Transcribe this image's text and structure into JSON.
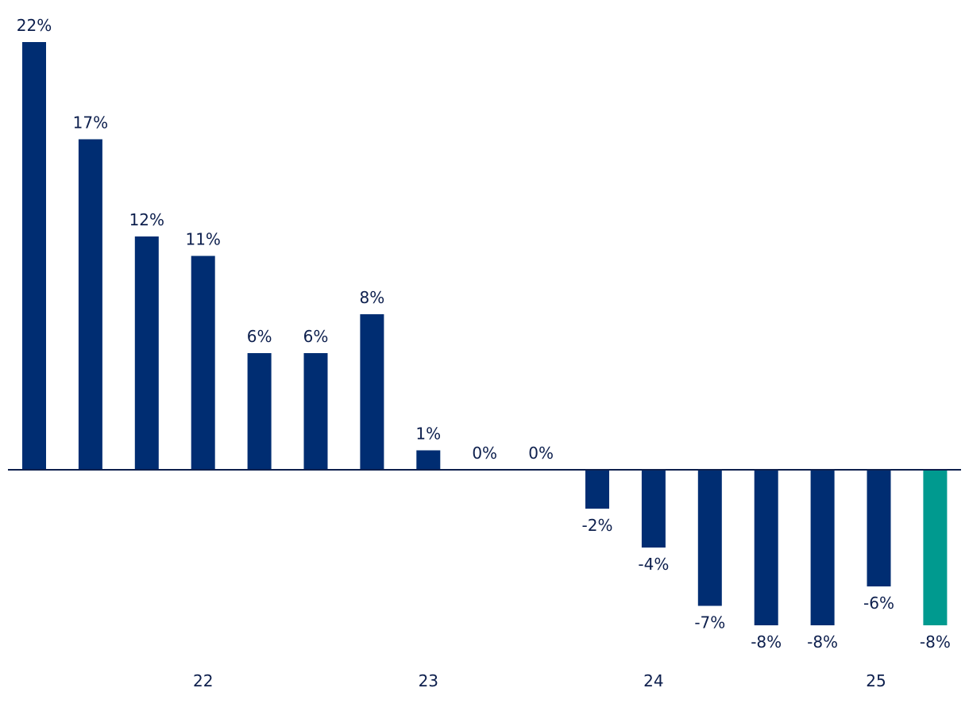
{
  "chart_data": {
    "type": "bar",
    "values": [
      22,
      17,
      12,
      11,
      6,
      6,
      8,
      1,
      0,
      0,
      -2,
      -4,
      -7,
      -8,
      -8,
      -6,
      -8
    ],
    "data_labels": [
      "22%",
      "17%",
      "12%",
      "11%",
      "6%",
      "6%",
      "8%",
      "1%",
      "0%",
      "0%",
      "-2%",
      "-4%",
      "-7%",
      "-8%",
      "-8%",
      "-6%",
      "-8%"
    ],
    "x_tick_labels": [
      "22",
      "23",
      "24",
      "25"
    ],
    "ylim": [
      -8,
      22
    ],
    "grid": false,
    "legend": "none",
    "bar_color": "#002d72",
    "highlight_color": "#009a8f",
    "highlight_index": 16
  }
}
